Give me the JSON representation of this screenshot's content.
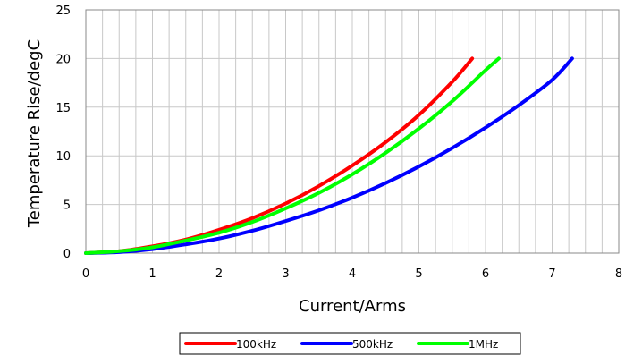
{
  "chart_data": {
    "type": "line",
    "title": "",
    "xlabel": "Current/Arms",
    "ylabel": "Temperature Rise/degC",
    "xlim": [
      0,
      8
    ],
    "ylim": [
      0,
      25
    ],
    "xticks": [
      "0",
      "1",
      "2",
      "3",
      "4",
      "5",
      "6",
      "7",
      "8"
    ],
    "yticks": [
      "0",
      "5",
      "10",
      "15",
      "20",
      "25"
    ],
    "grid": true,
    "legend_position": "bottom",
    "series": [
      {
        "name": "100kHz",
        "color": "#ff0000",
        "points": [
          [
            0,
            0
          ],
          [
            0.5,
            0.2
          ],
          [
            1,
            0.7
          ],
          [
            1.5,
            1.4
          ],
          [
            2,
            2.4
          ],
          [
            2.5,
            3.6
          ],
          [
            3,
            5.1
          ],
          [
            3.5,
            6.9
          ],
          [
            4,
            9.0
          ],
          [
            4.5,
            11.4
          ],
          [
            5,
            14.2
          ],
          [
            5.5,
            17.6
          ],
          [
            5.8,
            20.0
          ]
        ]
      },
      {
        "name": "500kHz",
        "color": "#0000ff",
        "points": [
          [
            0,
            0
          ],
          [
            0.5,
            0.1
          ],
          [
            1,
            0.4
          ],
          [
            1.5,
            0.9
          ],
          [
            2,
            1.5
          ],
          [
            2.5,
            2.3
          ],
          [
            3,
            3.3
          ],
          [
            3.5,
            4.4
          ],
          [
            4,
            5.7
          ],
          [
            4.5,
            7.2
          ],
          [
            5,
            8.9
          ],
          [
            5.5,
            10.8
          ],
          [
            6,
            12.9
          ],
          [
            6.5,
            15.2
          ],
          [
            7,
            17.8
          ],
          [
            7.3,
            20.0
          ]
        ]
      },
      {
        "name": "1MHz",
        "color": "#00ff00",
        "points": [
          [
            0,
            0
          ],
          [
            0.5,
            0.2
          ],
          [
            1,
            0.6
          ],
          [
            1.5,
            1.3
          ],
          [
            2,
            2.1
          ],
          [
            2.5,
            3.2
          ],
          [
            3,
            4.6
          ],
          [
            3.5,
            6.2
          ],
          [
            4,
            8.1
          ],
          [
            4.5,
            10.3
          ],
          [
            5,
            12.8
          ],
          [
            5.5,
            15.6
          ],
          [
            6,
            18.8
          ],
          [
            6.2,
            20.0
          ]
        ]
      }
    ]
  }
}
